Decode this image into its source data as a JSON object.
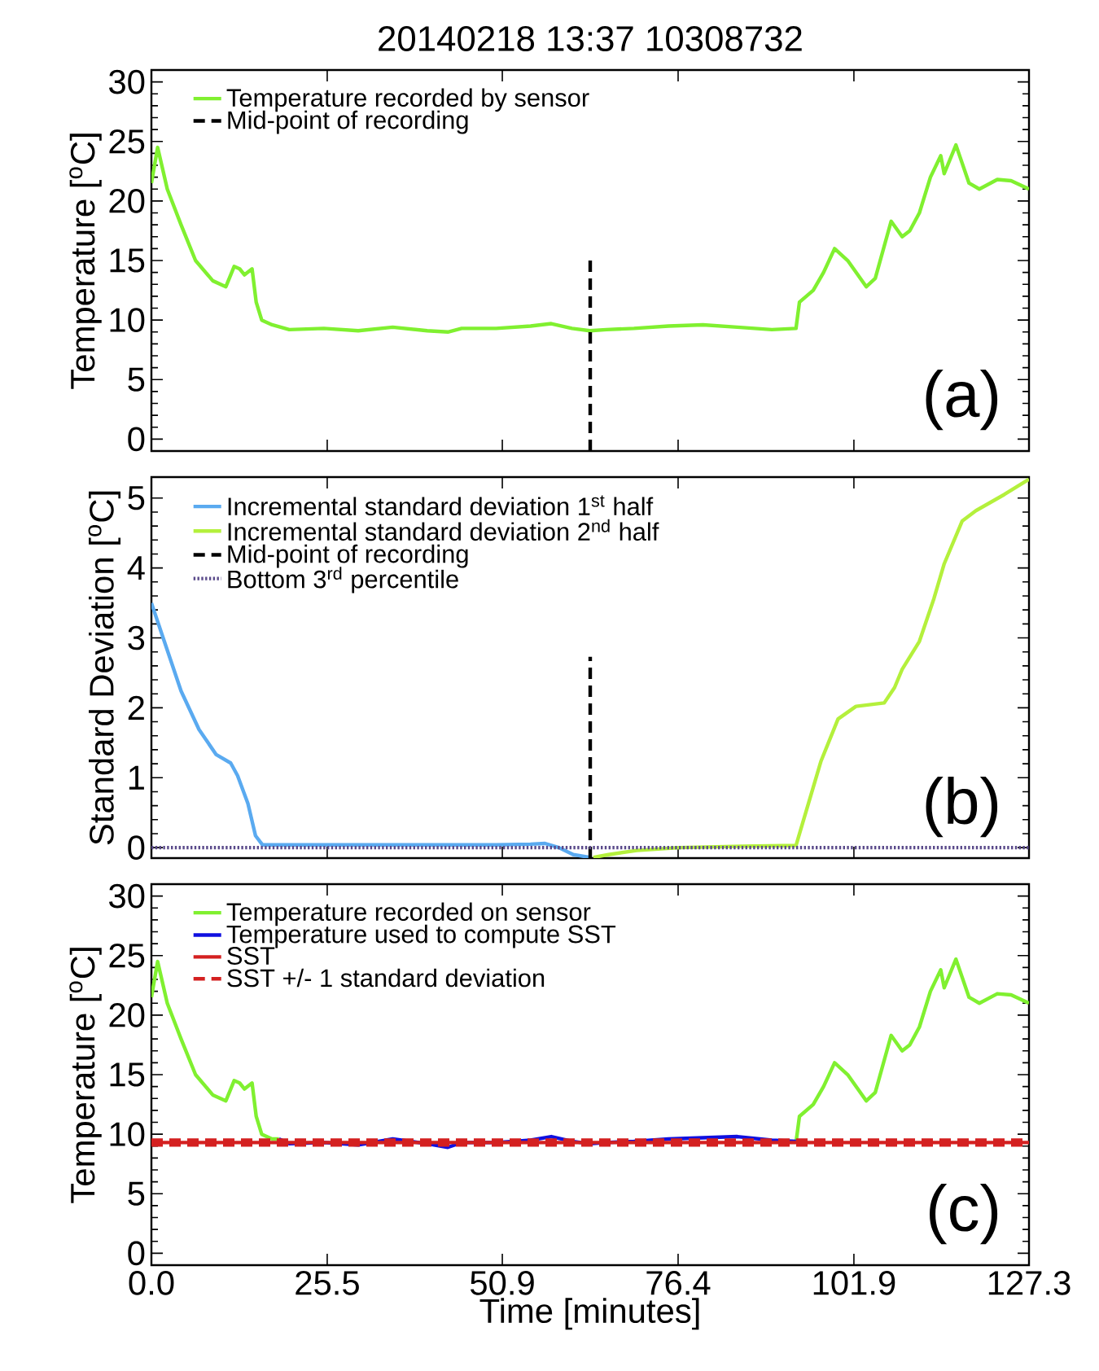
{
  "chart_data": [
    {
      "type": "line",
      "title": "20140218 13:37 10308732",
      "ylabel": "Temperature [$^{o}$C]",
      "annotations": [
        "(a)"
      ],
      "xlim": [
        0,
        127.3
      ],
      "ylim": [
        -1,
        31
      ],
      "xticks": [
        0,
        25.5,
        50.9,
        76.4,
        101.9,
        127.3
      ],
      "yticks": [
        0,
        5,
        10,
        15,
        20,
        25,
        30
      ],
      "tick_labels": "y",
      "legend": "top left",
      "marker": "none",
      "grid": false,
      "series": [
        {
          "name": "Temperature recorded by sensor",
          "color": "#80f030",
          "line_style": "solid",
          "x": [
            0,
            0.9,
            2.3,
            4.3,
            6.4,
            8.9,
            10.8,
            12,
            12.8,
            13.5,
            14.6,
            15.2,
            16,
            17.5,
            20,
            25,
            30,
            35,
            40,
            43,
            45,
            50,
            55,
            58,
            61,
            63.6,
            66,
            70,
            75,
            80,
            85,
            90,
            93.5,
            94,
            96,
            97.5,
            99.1,
            101,
            103.7,
            105,
            107.3,
            108.9,
            110,
            111.4,
            113,
            114.5,
            115,
            116.7,
            118.6,
            120.1,
            122.7,
            124.7,
            127.3
          ],
          "values": [
            21.5,
            24.5,
            21,
            18,
            15,
            13.3,
            12.8,
            14.5,
            14.3,
            13.8,
            14.3,
            11.5,
            10,
            9.6,
            9.2,
            9.3,
            9.1,
            9.4,
            9.1,
            9.0,
            9.3,
            9.3,
            9.5,
            9.7,
            9.3,
            9.1,
            9.2,
            9.3,
            9.5,
            9.6,
            9.4,
            9.2,
            9.3,
            11.5,
            12.5,
            14,
            16,
            15,
            12.8,
            13.5,
            18.3,
            17,
            17.5,
            19,
            22,
            23.8,
            22.3,
            24.7,
            21.5,
            21,
            21.8,
            21.7,
            21
          ]
        },
        {
          "name": "Mid-point of recording",
          "color": "#000000",
          "line_style": "dashed",
          "x": [
            63.65,
            63.65
          ],
          "values": [
            -1,
            15.2
          ]
        }
      ]
    },
    {
      "type": "line",
      "ylabel": "Standard Deviation [$^{o}$C]",
      "annotations": [
        "(b)"
      ],
      "xlim": [
        0,
        127.3
      ],
      "ylim": [
        -0.15,
        5.3
      ],
      "xticks": [
        0,
        25.5,
        50.9,
        76.4,
        101.9,
        127.3
      ],
      "yticks": [
        0,
        1,
        2,
        3,
        4,
        5
      ],
      "tick_labels": "y",
      "legend": "top left",
      "marker": "none",
      "grid": false,
      "series": [
        {
          "name": "Incremental standard deviation 1$^{st}$ half",
          "color": "#5aaaf0",
          "line_style": "solid",
          "x": [
            0,
            1.7,
            4.3,
            6.9,
            9.4,
            11.5,
            12.5,
            14.0,
            15.1,
            16.1,
            19.2,
            30,
            40,
            50,
            55,
            57.1,
            59.1,
            61.2,
            63.6
          ],
          "values": [
            3.5,
            3.0,
            2.24,
            1.69,
            1.33,
            1.21,
            1.03,
            0.63,
            0.17,
            0.04,
            0.04,
            0.04,
            0.04,
            0.04,
            0.05,
            0.06,
            0.0,
            -0.1,
            -0.14
          ]
        },
        {
          "name": "Incremental standard deviation 2$^{nd}$ half",
          "color": "#b4f03c",
          "line_style": "solid",
          "x": [
            64.1,
            66.3,
            70.4,
            76.6,
            85.8,
            93.5,
            95.0,
            97.1,
            99.6,
            102.2,
            106.3,
            107.8,
            108.9,
            111.4,
            113.5,
            115,
            117.6,
            119.6,
            123.7,
            127.3
          ],
          "values": [
            -0.14,
            -0.1,
            -0.04,
            0,
            0.02,
            0.03,
            0.53,
            1.23,
            1.84,
            2.02,
            2.07,
            2.29,
            2.55,
            2.95,
            3.56,
            4.06,
            4.67,
            4.82,
            5.05,
            5.27
          ]
        },
        {
          "name": "Mid-point of recording",
          "color": "#000000",
          "line_style": "dashed",
          "x": [
            63.65,
            63.65
          ],
          "values": [
            -0.15,
            2.73
          ]
        },
        {
          "name": "Bottom 3$^{rd}$ percentile",
          "color": "#5a4a8a",
          "line_style": "dotted",
          "x": [
            0,
            127.3
          ],
          "values": [
            0.0,
            0.0
          ]
        }
      ]
    },
    {
      "type": "line",
      "xlabel": "Time [minutes]",
      "ylabel": "Temperature [$^{o}$C]",
      "annotations": [
        "(c)"
      ],
      "xlim": [
        0,
        127.3
      ],
      "ylim": [
        -1,
        31
      ],
      "xticks": [
        {
          "value": 0,
          "label": "0.0"
        },
        25.5,
        50.9,
        76.4,
        101.9,
        127.3
      ],
      "yticks": [
        0,
        5,
        10,
        15,
        20,
        25,
        30
      ],
      "legend": "top left",
      "marker": "none",
      "grid": false,
      "series": [
        {
          "name": "Temperature recorded on sensor",
          "color": "#80f030",
          "line_style": "solid",
          "x": [
            0,
            0.9,
            2.3,
            4.3,
            6.4,
            8.9,
            10.8,
            12,
            12.8,
            13.5,
            14.6,
            15.2,
            16,
            17.5,
            18.5,
            56,
            93.5,
            94,
            96,
            97.5,
            99.1,
            101,
            103.7,
            105,
            107.3,
            108.9,
            110,
            111.4,
            113,
            114.5,
            115,
            116.7,
            118.6,
            120.1,
            122.7,
            124.7,
            127.3
          ],
          "values": [
            21.5,
            24.5,
            21,
            18,
            15,
            13.3,
            12.8,
            14.5,
            14.3,
            13.8,
            14.3,
            11.5,
            10,
            9.6,
            9.6,
            null,
            9.3,
            11.5,
            12.5,
            14,
            16,
            15,
            12.8,
            13.5,
            18.3,
            17,
            17.5,
            19,
            22,
            23.8,
            22.3,
            24.7,
            21.5,
            21,
            21.8,
            21.7,
            21
          ]
        },
        {
          "name": "Temperature used to compute SST",
          "color": "#1010e0",
          "line_style": "solid",
          "x": [
            18.5,
            20,
            25,
            30,
            35,
            40,
            43,
            45,
            50,
            55,
            58,
            61,
            63.6,
            66,
            70,
            75,
            80,
            85,
            90,
            93.5
          ],
          "values": [
            9.6,
            9.2,
            9.3,
            9.1,
            9.6,
            9.2,
            8.9,
            9.3,
            9.3,
            9.5,
            9.8,
            9.4,
            9.2,
            9.3,
            9.4,
            9.6,
            9.7,
            9.8,
            9.5,
            9.4
          ]
        },
        {
          "name": "SST",
          "color": "#d42020",
          "line_style": "solid",
          "x": [
            0,
            127.3
          ],
          "values": [
            9.3,
            9.3
          ]
        },
        {
          "name": "SST +/- 1 standard deviation",
          "color": "#d42020",
          "line_style": "dashed",
          "x": [
            0,
            127.3
          ],
          "values": [
            9.1,
            9.1
          ]
        },
        {
          "color": "#d42020",
          "line_style": "dashed",
          "x": [
            0,
            127.3
          ],
          "values": [
            9.5,
            9.5
          ]
        }
      ]
    }
  ]
}
